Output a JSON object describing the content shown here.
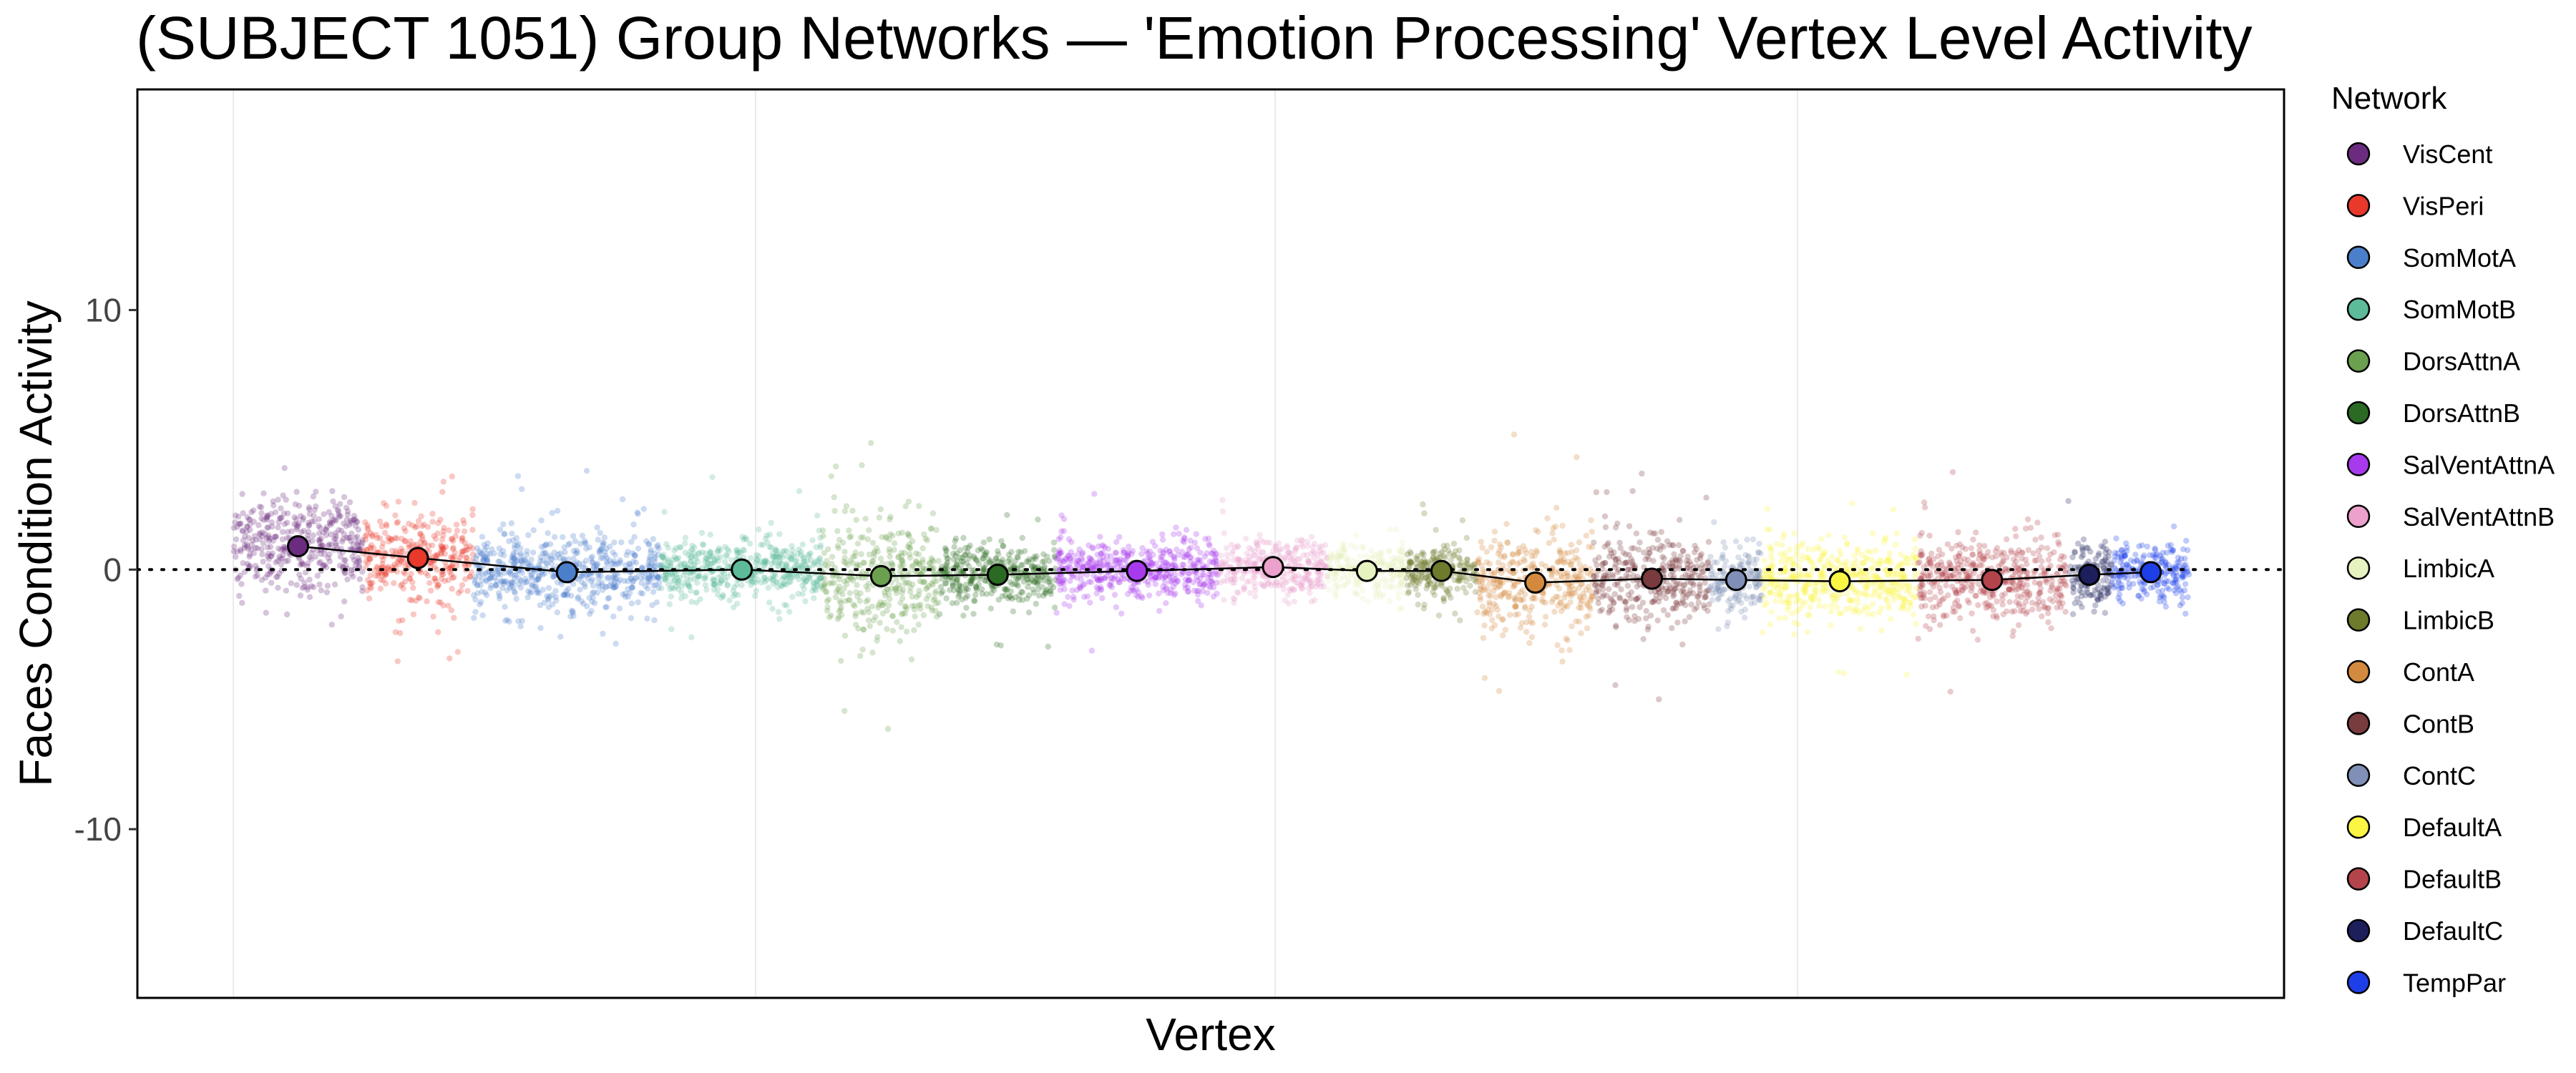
{
  "chart_data": {
    "type": "scatter",
    "title": "(SUBJECT 1051) Group Networks — 'Emotion Processing' Vertex Level Activity",
    "xlabel": "Vertex",
    "ylabel": "Faces Condition Activity",
    "ylim": [
      -16.5,
      18.5
    ],
    "yticks": [
      -10,
      0,
      10
    ],
    "ytick_labels": [
      "-10",
      "0",
      "10"
    ],
    "reference_line": {
      "y": 0,
      "style": "dotted"
    },
    "grid": {
      "vertical_minor": true,
      "horizontal": false
    },
    "legend": {
      "title": "Network",
      "placement": "right"
    },
    "series": [
      {
        "name": "VisCent",
        "color": "#6B2C7F",
        "mean": 0.9,
        "spread": 1.6,
        "width": 1.0
      },
      {
        "name": "VisPeri",
        "color": "#E8392B",
        "mean": 0.45,
        "spread": 1.4,
        "width": 0.85
      },
      {
        "name": "SomMotA",
        "color": "#4B7FCB",
        "mean": -0.1,
        "spread": 1.3,
        "width": 1.45
      },
      {
        "name": "SomMotB",
        "color": "#5DBB9A",
        "mean": 0.0,
        "spread": 1.0,
        "width": 1.25
      },
      {
        "name": "DorsAttnA",
        "color": "#6BA04E",
        "mean": -0.25,
        "spread": 1.9,
        "width": 0.9
      },
      {
        "name": "DorsAttnB",
        "color": "#2A6A22",
        "mean": -0.2,
        "spread": 1.0,
        "width": 0.9
      },
      {
        "name": "SalVentAttnA",
        "color": "#A83AEE",
        "mean": -0.05,
        "spread": 1.0,
        "width": 1.25
      },
      {
        "name": "SalVentAttnB",
        "color": "#EBA1CC",
        "mean": 0.1,
        "spread": 1.0,
        "width": 0.85
      },
      {
        "name": "LimbicA",
        "color": "#E6F2C0",
        "mean": -0.05,
        "spread": 0.9,
        "width": 0.6
      },
      {
        "name": "LimbicB",
        "color": "#6E7A2C",
        "mean": -0.05,
        "spread": 0.9,
        "width": 0.55
      },
      {
        "name": "ContA",
        "color": "#D48A3E",
        "mean": -0.5,
        "spread": 1.6,
        "width": 0.9
      },
      {
        "name": "ContB",
        "color": "#7A3B3E",
        "mean": -0.35,
        "spread": 1.5,
        "width": 0.9
      },
      {
        "name": "ContC",
        "color": "#7F8FB5",
        "mean": -0.4,
        "spread": 1.1,
        "width": 0.4
      },
      {
        "name": "DefaultA",
        "color": "#FBF544",
        "mean": -0.45,
        "spread": 1.3,
        "width": 1.2
      },
      {
        "name": "DefaultB",
        "color": "#B3444B",
        "mean": -0.4,
        "spread": 1.4,
        "width": 1.15
      },
      {
        "name": "DefaultC",
        "color": "#1C1F5C",
        "mean": -0.2,
        "spread": 1.1,
        "width": 0.35
      },
      {
        "name": "TempPar",
        "color": "#1E3FE8",
        "mean": -0.1,
        "spread": 1.0,
        "width": 0.6
      }
    ]
  }
}
